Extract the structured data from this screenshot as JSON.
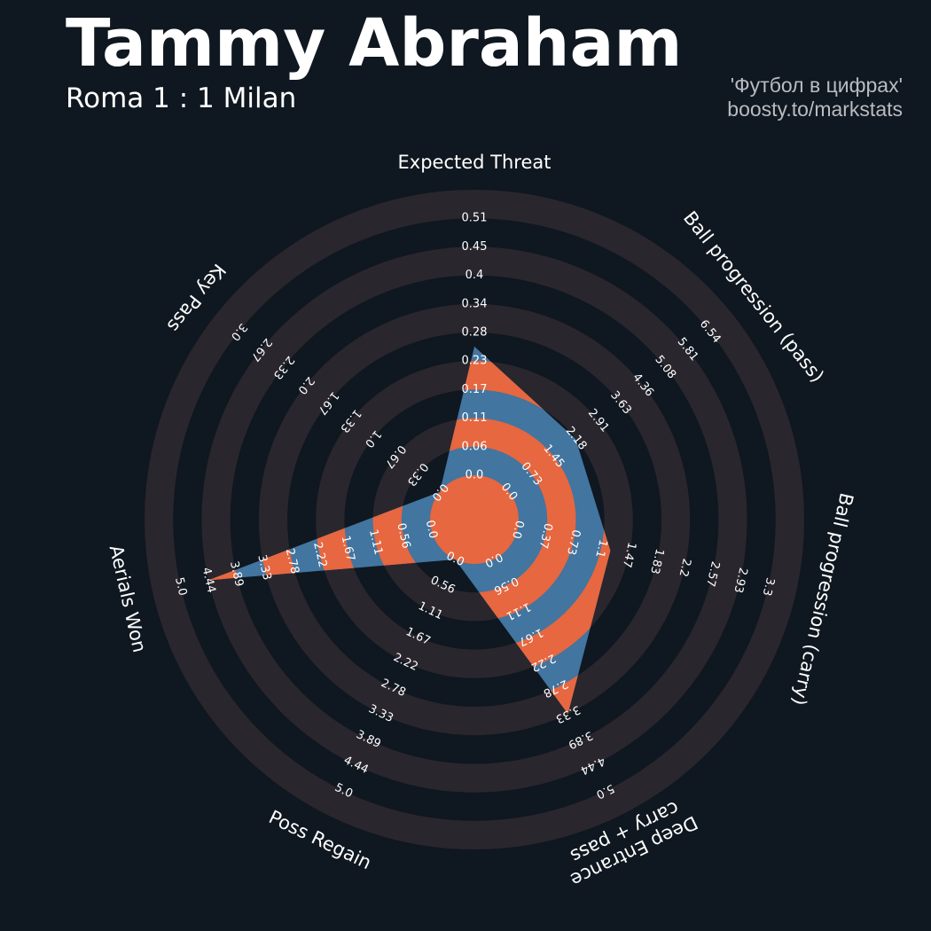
{
  "header": {
    "title": "Tammy Abraham",
    "subtitle": "Roma 1 : 1 Milan",
    "credit_line1": "'Футбол в цифрах'",
    "credit_line2": "boosty.to/markstats"
  },
  "colors": {
    "background": "#0f1720",
    "ring_band": "#2a262d",
    "player_fill": "#42759f",
    "highlight_ring": "#e66740",
    "center_disc": "#e66740",
    "label_text": "#ffffff",
    "credit_text": "#b9bcc0"
  },
  "chart_data": {
    "type": "radar",
    "grid": true,
    "ring_count": 4,
    "categories": [
      {
        "name": "Expected Threat",
        "ticks": [
          "0.0",
          "0.06",
          "0.11",
          "0.17",
          "0.23",
          "0.28",
          "0.34",
          "0.4",
          "0.45",
          "0.51"
        ],
        "min": 0,
        "max": 0.51,
        "value": 0.23
      },
      {
        "name": "Ball progression (pass)",
        "ticks": [
          "0.0",
          "0.73",
          "1.45",
          "2.18",
          "2.91",
          "3.63",
          "4.36",
          "5.08",
          "5.81",
          "6.54"
        ],
        "min": 0,
        "max": 6.54,
        "value": 1.95
      },
      {
        "name": "Ball progression (carry)",
        "ticks": [
          "0.0",
          "0.37",
          "0.73",
          "1.1",
          "1.47",
          "1.83",
          "2.2",
          "2.57",
          "2.93",
          "3.3"
        ],
        "min": 0,
        "max": 3.3,
        "value": 1.1
      },
      {
        "name": "Deep Entrance\ncarry + pass",
        "ticks": [
          "0.0",
          "0.56",
          "1.11",
          "1.67",
          "2.22",
          "2.78",
          "3.33",
          "3.89",
          "4.44",
          "5.0"
        ],
        "min": 0,
        "max": 5.0,
        "value": 3.0
      },
      {
        "name": "Poss Regain",
        "ticks": [
          "0.0",
          "0.56",
          "1.11",
          "1.67",
          "2.22",
          "2.78",
          "3.33",
          "3.89",
          "4.44",
          "5.0"
        ],
        "min": 0,
        "max": 5.0,
        "value": 0.0
      },
      {
        "name": "Aerials Won",
        "ticks": [
          "0.0",
          "0.56",
          "1.11",
          "1.67",
          "2.22",
          "2.78",
          "3.33",
          "3.89",
          "4.44",
          "5.0"
        ],
        "min": 0,
        "max": 5.0,
        "value": 4.0
      },
      {
        "name": "Key Pass",
        "ticks": [
          "0.0",
          "0.33",
          "0.67",
          "1.0",
          "1.33",
          "1.67",
          "2.0",
          "2.33",
          "2.67",
          "3.0"
        ],
        "min": 0,
        "max": 3.0,
        "value": 0.0
      }
    ]
  }
}
